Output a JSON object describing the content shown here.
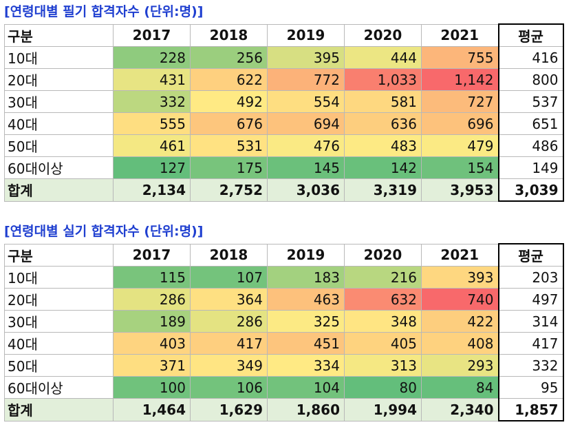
{
  "colors": {
    "title": "#1f3fd0",
    "total_row_bg": "#e2efda",
    "scale_low": "#63be7b",
    "scale_mid": "#ffeb84",
    "scale_high": "#f8696b"
  },
  "tables": [
    {
      "title": "[연령대별 필기 합격자수 (단위:명)]",
      "header": {
        "label": "구분",
        "years": [
          "2017",
          "2018",
          "2019",
          "2020",
          "2021"
        ],
        "avg": "평균"
      },
      "rows": [
        {
          "label": "10대",
          "values": [
            "228",
            "256",
            "395",
            "444",
            "755"
          ],
          "avg": "416"
        },
        {
          "label": "20대",
          "values": [
            "431",
            "622",
            "772",
            "1,033",
            "1,142"
          ],
          "avg": "800"
        },
        {
          "label": "30대",
          "values": [
            "332",
            "492",
            "554",
            "581",
            "727"
          ],
          "avg": "537"
        },
        {
          "label": "40대",
          "values": [
            "555",
            "676",
            "694",
            "636",
            "696"
          ],
          "avg": "651"
        },
        {
          "label": "50대",
          "values": [
            "461",
            "531",
            "476",
            "483",
            "479"
          ],
          "avg": "486"
        },
        {
          "label": "60대이상",
          "values": [
            "127",
            "175",
            "145",
            "142",
            "154"
          ],
          "avg": "149"
        }
      ],
      "total": {
        "label": "합계",
        "values": [
          "2,134",
          "2,752",
          "3,036",
          "3,319",
          "3,953"
        ],
        "avg": "3,039"
      }
    },
    {
      "title": "[연령대별 실기 합격자수 (단위:명)]",
      "header": {
        "label": "구분",
        "years": [
          "2017",
          "2018",
          "2019",
          "2020",
          "2021"
        ],
        "avg": "평균"
      },
      "rows": [
        {
          "label": "10대",
          "values": [
            "115",
            "107",
            "183",
            "216",
            "393"
          ],
          "avg": "203"
        },
        {
          "label": "20대",
          "values": [
            "286",
            "364",
            "463",
            "632",
            "740"
          ],
          "avg": "497"
        },
        {
          "label": "30대",
          "values": [
            "189",
            "286",
            "325",
            "348",
            "422"
          ],
          "avg": "314"
        },
        {
          "label": "40대",
          "values": [
            "403",
            "417",
            "451",
            "405",
            "408"
          ],
          "avg": "417"
        },
        {
          "label": "50대",
          "values": [
            "371",
            "349",
            "334",
            "313",
            "293"
          ],
          "avg": "332"
        },
        {
          "label": "60대이상",
          "values": [
            "100",
            "106",
            "104",
            "80",
            "84"
          ],
          "avg": "95"
        }
      ],
      "total": {
        "label": "합계",
        "values": [
          "1,464",
          "1,629",
          "1,860",
          "1,994",
          "2,340"
        ],
        "avg": "1,857"
      }
    }
  ]
}
